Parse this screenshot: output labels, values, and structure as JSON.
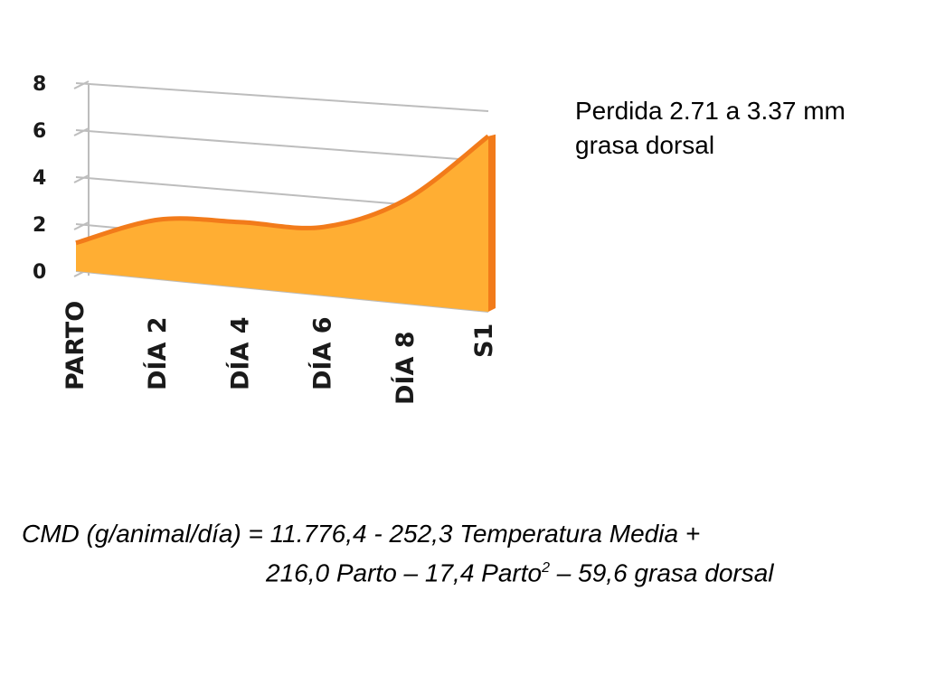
{
  "chart_data": {
    "type": "area",
    "categories": [
      "PARTO",
      "DÍA 2",
      "DÍA 4",
      "DÍA 6",
      "DÍA 8",
      "S1"
    ],
    "yticks": [
      "0",
      "2",
      "4",
      "6",
      "8"
    ],
    "ylim": [
      0,
      8
    ],
    "grid": true,
    "series": [
      {
        "values": [
          1.2,
          2.5,
          2.7,
          2.8,
          4.2,
          7.0
        ]
      }
    ],
    "colors": {
      "fill": "#FFAE33",
      "edge": "#F27B1A",
      "grid": "#bdbdbd"
    }
  },
  "note": {
    "line1": "Perdida 2.71 a 3.37 mm",
    "line2": "grasa dorsal"
  },
  "formula": {
    "line1": "CMD (g/animal/día) = 11.776,4 - 252,3 Temperatura Media +",
    "line2_a": "216,0 Parto – 17,4 Parto",
    "line2_sup": "2",
    "line2_b": " – 59,6 grasa dorsal"
  }
}
